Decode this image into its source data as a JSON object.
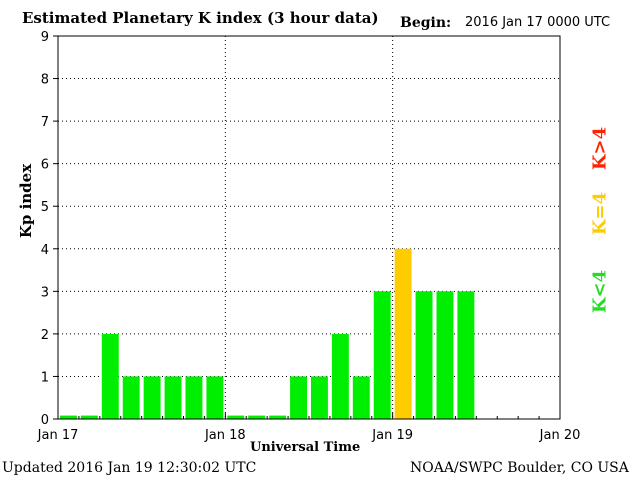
{
  "header": {
    "title": "Estimated Planetary K index (3 hour data)",
    "begin_label": "Begin:",
    "begin_value": "2016 Jan 17 0000 UTC"
  },
  "footer": {
    "updated": "Updated 2016 Jan 19 12:30:02 UTC",
    "credit": "NOAA/SWPC Boulder, CO USA"
  },
  "legend": {
    "high": "K>4",
    "equal": "K=4",
    "low": "K<4"
  },
  "colors": {
    "low": "#00ee00",
    "equal": "#ffcc00",
    "high": "#ff2200"
  },
  "chart_data": {
    "type": "bar",
    "title": "Estimated Planetary K index (3 hour data)",
    "xlabel": "Universal Time",
    "ylabel": "Kp index",
    "ylim": [
      0,
      9
    ],
    "yticks": [
      "0",
      "1",
      "2",
      "3",
      "4",
      "5",
      "6",
      "7",
      "8",
      "9"
    ],
    "xticks": [
      "Jan 17",
      "Jan 18",
      "Jan 19",
      "Jan 20"
    ],
    "interval_hours": 3,
    "values": [
      0,
      0,
      2,
      1,
      1,
      1,
      1,
      1,
      0,
      0,
      0,
      1,
      1,
      2,
      1,
      3,
      4,
      3,
      3,
      3
    ],
    "grid": true
  }
}
